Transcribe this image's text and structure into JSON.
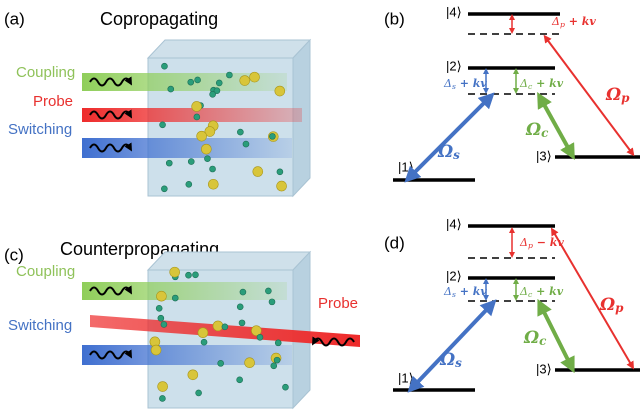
{
  "panel_a": {
    "label": "(a)",
    "title": "Copropagating",
    "coupling": "Coupling",
    "probe": "Probe",
    "switching": "Switching"
  },
  "panel_b": {
    "label": "(b)",
    "level_1": "|1⟩",
    "level_2": "|2⟩",
    "level_3": "|3⟩",
    "level_4": "|4⟩",
    "delta_p": {
      "symbol": "Δ",
      "subscript": "p",
      "term": " + kv"
    },
    "delta_s": {
      "symbol": "Δ",
      "subscript": "s",
      "term": " + kv"
    },
    "delta_c": {
      "symbol": "Δ",
      "subscript": "c",
      "term": " + kv"
    },
    "omega_p": {
      "symbol": "Ω",
      "subscript": "p"
    },
    "omega_s": {
      "symbol": "Ω",
      "subscript": "s"
    },
    "omega_c": {
      "symbol": "Ω",
      "subscript": "c"
    }
  },
  "panel_c": {
    "label": "(c)",
    "title": "Counterpropagating",
    "coupling": "Coupling",
    "probe": "Probe",
    "switching": "Switching"
  },
  "panel_d": {
    "label": "(d)",
    "level_1": "|1⟩",
    "level_2": "|2⟩",
    "level_3": "|3⟩",
    "level_4": "|4⟩",
    "delta_p": {
      "symbol": "Δ",
      "subscript": "p",
      "term": " − kv"
    },
    "delta_s": {
      "symbol": "Δ",
      "subscript": "s",
      "term": " + kv"
    },
    "delta_c": {
      "symbol": "Δ",
      "subscript": "c",
      "term": " + kv"
    },
    "omega_p": {
      "symbol": "Ω",
      "subscript": "p"
    },
    "omega_s": {
      "symbol": "Ω",
      "subscript": "s"
    },
    "omega_c": {
      "symbol": "Ω",
      "subscript": "c"
    }
  }
}
